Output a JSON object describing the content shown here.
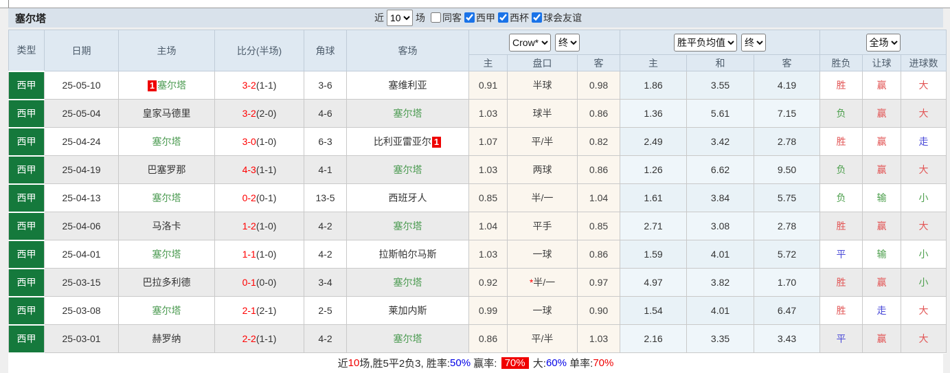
{
  "title": "塞尔塔",
  "filters": {
    "recent_label": "近",
    "count_value": "10",
    "matches_label": "场",
    "checkboxes": [
      {
        "label": "同客",
        "checked": false
      },
      {
        "label": "西甲",
        "checked": true
      },
      {
        "label": "西杯",
        "checked": true
      },
      {
        "label": "球会友谊",
        "checked": true
      }
    ]
  },
  "table": {
    "static_headers": [
      "类型",
      "日期",
      "主场",
      "比分(半场)",
      "角球",
      "客场"
    ],
    "selects": {
      "bookmaker": "Crow*",
      "bookmaker_time": "终",
      "average": "胜平负均值",
      "average_time": "终",
      "scope": "全场"
    },
    "sub_headers": [
      "主",
      "盘口",
      "客",
      "主",
      "和",
      "客",
      "胜负",
      "让球",
      "进球数"
    ],
    "rows": [
      {
        "league": "西甲",
        "date": "25-05-10",
        "home": {
          "name": "塞尔塔",
          "focus": true,
          "badge": "1",
          "badge_pos": "before"
        },
        "score": "3-2",
        "half": "(1-1)",
        "corner": "3-6",
        "away": {
          "name": "塞维利亚",
          "focus": false
        },
        "crow": [
          "0.91",
          "半球",
          "0.98"
        ],
        "avg": [
          "1.86",
          "3.55",
          "4.19"
        ],
        "results": [
          {
            "t": "胜",
            "c": "red"
          },
          {
            "t": "赢",
            "c": "red"
          },
          {
            "t": "大",
            "c": "red"
          }
        ]
      },
      {
        "league": "西甲",
        "date": "25-05-04",
        "home": {
          "name": "皇家马德里",
          "focus": false
        },
        "score": "3-2",
        "half": "(2-0)",
        "corner": "4-6",
        "away": {
          "name": "塞尔塔",
          "focus": true
        },
        "crow": [
          "1.03",
          "球半",
          "0.86"
        ],
        "avg": [
          "1.36",
          "5.61",
          "7.15"
        ],
        "results": [
          {
            "t": "负",
            "c": "green"
          },
          {
            "t": "赢",
            "c": "red"
          },
          {
            "t": "大",
            "c": "red"
          }
        ]
      },
      {
        "league": "西甲",
        "date": "25-04-24",
        "home": {
          "name": "塞尔塔",
          "focus": true
        },
        "score": "3-0",
        "half": "(1-0)",
        "corner": "6-3",
        "away": {
          "name": "比利亚雷亚尔",
          "focus": false,
          "badge": "1",
          "badge_pos": "after"
        },
        "crow": [
          "1.07",
          "平/半",
          "0.82"
        ],
        "avg": [
          "2.49",
          "3.42",
          "2.78"
        ],
        "results": [
          {
            "t": "胜",
            "c": "red"
          },
          {
            "t": "赢",
            "c": "red"
          },
          {
            "t": "走",
            "c": "blue"
          }
        ]
      },
      {
        "league": "西甲",
        "date": "25-04-19",
        "home": {
          "name": "巴塞罗那",
          "focus": false
        },
        "score": "4-3",
        "half": "(1-1)",
        "corner": "4-1",
        "away": {
          "name": "塞尔塔",
          "focus": true
        },
        "crow": [
          "1.03",
          "两球",
          "0.86"
        ],
        "avg": [
          "1.26",
          "6.62",
          "9.50"
        ],
        "results": [
          {
            "t": "负",
            "c": "green"
          },
          {
            "t": "赢",
            "c": "red"
          },
          {
            "t": "大",
            "c": "red"
          }
        ]
      },
      {
        "league": "西甲",
        "date": "25-04-13",
        "home": {
          "name": "塞尔塔",
          "focus": true
        },
        "score": "0-2",
        "half": "(0-1)",
        "corner": "13-5",
        "away": {
          "name": "西班牙人",
          "focus": false
        },
        "crow": [
          "0.85",
          "半/一",
          "1.04"
        ],
        "avg": [
          "1.61",
          "3.84",
          "5.75"
        ],
        "results": [
          {
            "t": "负",
            "c": "green"
          },
          {
            "t": "输",
            "c": "green"
          },
          {
            "t": "小",
            "c": "green"
          }
        ]
      },
      {
        "league": "西甲",
        "date": "25-04-06",
        "home": {
          "name": "马洛卡",
          "focus": false
        },
        "score": "1-2",
        "half": "(1-0)",
        "corner": "4-2",
        "away": {
          "name": "塞尔塔",
          "focus": true
        },
        "crow": [
          "1.04",
          "平手",
          "0.85"
        ],
        "avg": [
          "2.71",
          "3.08",
          "2.78"
        ],
        "results": [
          {
            "t": "胜",
            "c": "red"
          },
          {
            "t": "赢",
            "c": "red"
          },
          {
            "t": "大",
            "c": "red"
          }
        ]
      },
      {
        "league": "西甲",
        "date": "25-04-01",
        "home": {
          "name": "塞尔塔",
          "focus": true
        },
        "score": "1-1",
        "half": "(1-0)",
        "corner": "4-2",
        "away": {
          "name": "拉斯帕尔马斯",
          "focus": false
        },
        "crow": [
          "1.03",
          "一球",
          "0.86"
        ],
        "avg": [
          "1.59",
          "4.01",
          "5.72"
        ],
        "results": [
          {
            "t": "平",
            "c": "blue"
          },
          {
            "t": "输",
            "c": "green"
          },
          {
            "t": "小",
            "c": "green"
          }
        ]
      },
      {
        "league": "西甲",
        "date": "25-03-15",
        "home": {
          "name": "巴拉多利德",
          "focus": false
        },
        "score": "0-1",
        "half": "(0-0)",
        "corner": "3-4",
        "away": {
          "name": "塞尔塔",
          "focus": true
        },
        "crow": [
          "0.92",
          "*半/一",
          "0.97"
        ],
        "avg": [
          "4.97",
          "3.82",
          "1.70"
        ],
        "results": [
          {
            "t": "胜",
            "c": "red"
          },
          {
            "t": "赢",
            "c": "red"
          },
          {
            "t": "小",
            "c": "green"
          }
        ]
      },
      {
        "league": "西甲",
        "date": "25-03-08",
        "home": {
          "name": "塞尔塔",
          "focus": true
        },
        "score": "2-1",
        "half": "(2-1)",
        "corner": "2-5",
        "away": {
          "name": "莱加内斯",
          "focus": false
        },
        "crow": [
          "0.99",
          "一球",
          "0.90"
        ],
        "avg": [
          "1.54",
          "4.01",
          "6.47"
        ],
        "results": [
          {
            "t": "胜",
            "c": "red"
          },
          {
            "t": "走",
            "c": "blue"
          },
          {
            "t": "大",
            "c": "red"
          }
        ]
      },
      {
        "league": "西甲",
        "date": "25-03-01",
        "home": {
          "name": "赫罗纳",
          "focus": false
        },
        "score": "2-2",
        "half": "(1-1)",
        "corner": "4-2",
        "away": {
          "name": "塞尔塔",
          "focus": true
        },
        "crow": [
          "0.86",
          "平/半",
          "1.03"
        ],
        "avg": [
          "2.16",
          "3.35",
          "3.43"
        ],
        "results": [
          {
            "t": "平",
            "c": "blue"
          },
          {
            "t": "赢",
            "c": "red"
          },
          {
            "t": "大",
            "c": "red"
          }
        ]
      }
    ]
  },
  "footer": {
    "segments": [
      {
        "t": "近",
        "c": "dark"
      },
      {
        "t": "10",
        "c": "red"
      },
      {
        "t": "场,胜5平2负3, 胜率:",
        "c": "dark"
      },
      {
        "t": "50%",
        "c": "blue"
      },
      {
        "t": " 赢率: ",
        "c": "dark"
      },
      {
        "t": "70%",
        "c": "white-on-red"
      },
      {
        "t": " 大:",
        "c": "dark"
      },
      {
        "t": "60%",
        "c": "blue"
      },
      {
        "t": " 单率:",
        "c": "dark"
      },
      {
        "t": "70%",
        "c": "red"
      }
    ]
  },
  "colors": {
    "league_green": "#15793c",
    "focus_team_green": "#4c9b52",
    "score_red": "#ff0000",
    "state_red": "#e25555",
    "state_green": "#4ea04e",
    "state_blue": "#4a4ad8",
    "badge_red": "#ee0000",
    "header_bg": "#dfe9f2",
    "title_bar_bg": "#d9e2eb",
    "crow_col_bg": "#fbf6ee",
    "avg_col_bg": "#e9f2f7"
  }
}
